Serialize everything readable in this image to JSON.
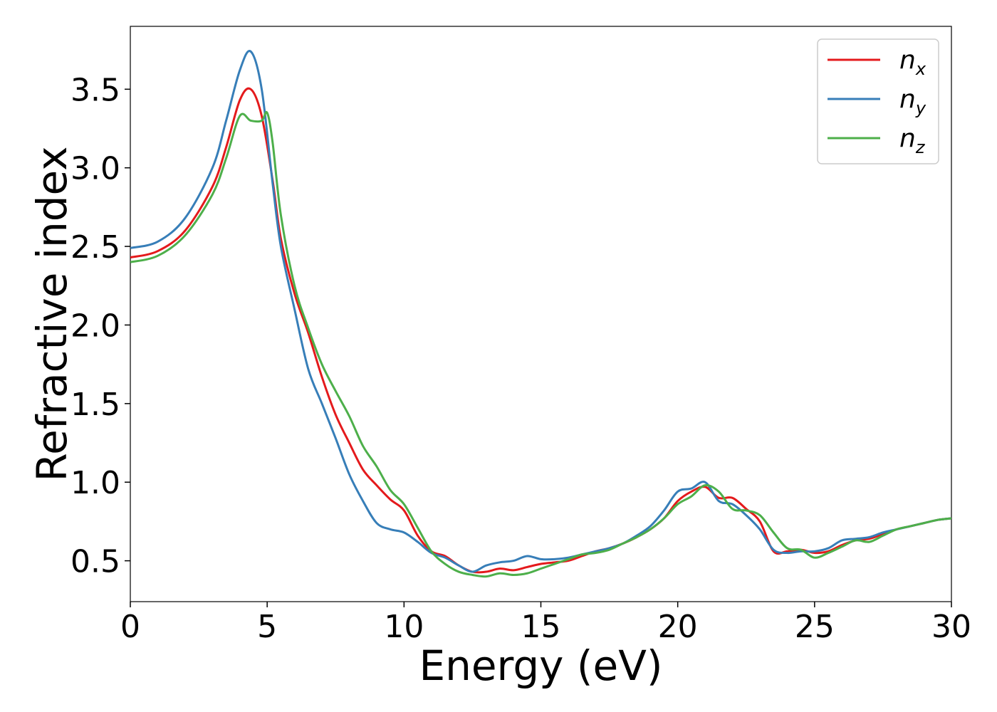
{
  "chart_data": {
    "type": "line",
    "title": "",
    "xlabel": "Energy (eV)",
    "ylabel": "Refractive index",
    "xlim": [
      0,
      30
    ],
    "ylim": [
      0.24,
      3.9
    ],
    "xticks": [
      0,
      5,
      10,
      15,
      20,
      25,
      30
    ],
    "yticks": [
      0.5,
      1.0,
      1.5,
      2.0,
      2.5,
      3.0,
      3.5
    ],
    "xtick_labels": [
      "0",
      "5",
      "10",
      "15",
      "20",
      "25",
      "30"
    ],
    "ytick_labels": [
      "0.5",
      "1.0",
      "1.5",
      "2.0",
      "2.5",
      "3.0",
      "3.5"
    ],
    "grid": false,
    "legend_position": "top-right",
    "series": [
      {
        "name": "n_x",
        "label_base": "n",
        "label_sub": "x",
        "color": "#e41a1c",
        "x": [
          0,
          1,
          2,
          3,
          3.5,
          4,
          4.4,
          4.8,
          5.2,
          5.5,
          6,
          6.5,
          7,
          7.5,
          8,
          8.5,
          9,
          9.5,
          10,
          10.5,
          11,
          11.5,
          12,
          12.5,
          13,
          13.5,
          14,
          14.5,
          15,
          15.5,
          16,
          16.5,
          17,
          17.5,
          18,
          18.5,
          19,
          19.5,
          20,
          20.5,
          21,
          21.5,
          22,
          22.5,
          23,
          23.5,
          24,
          24.5,
          25,
          25.5,
          26,
          26.5,
          27,
          27.5,
          28,
          28.5,
          29,
          29.5,
          30
        ],
        "y": [
          2.43,
          2.47,
          2.6,
          2.88,
          3.13,
          3.43,
          3.5,
          3.33,
          2.92,
          2.55,
          2.2,
          1.95,
          1.67,
          1.43,
          1.25,
          1.08,
          0.98,
          0.89,
          0.82,
          0.66,
          0.56,
          0.53,
          0.47,
          0.43,
          0.43,
          0.45,
          0.44,
          0.46,
          0.48,
          0.49,
          0.5,
          0.53,
          0.56,
          0.58,
          0.61,
          0.65,
          0.7,
          0.77,
          0.88,
          0.94,
          0.97,
          0.9,
          0.9,
          0.83,
          0.75,
          0.56,
          0.56,
          0.57,
          0.55,
          0.56,
          0.6,
          0.63,
          0.64,
          0.67,
          0.7,
          0.72,
          0.74,
          0.76,
          0.77
        ]
      },
      {
        "name": "n_y",
        "label_base": "n",
        "label_sub": "y",
        "color": "#377eb8",
        "x": [
          0,
          1,
          2,
          3,
          3.5,
          4,
          4.4,
          4.8,
          5.2,
          5.5,
          6,
          6.5,
          7,
          7.5,
          8,
          8.5,
          9,
          9.5,
          10,
          10.5,
          11,
          11.5,
          12,
          12.5,
          13,
          13.5,
          14,
          14.5,
          15,
          15.5,
          16,
          16.5,
          17,
          17.5,
          18,
          18.5,
          19,
          19.5,
          20,
          20.5,
          21,
          21.5,
          22,
          22.5,
          23,
          23.5,
          24,
          24.5,
          25,
          25.5,
          26,
          26.5,
          27,
          27.5,
          28,
          28.5,
          29,
          29.5,
          30
        ],
        "y": [
          2.49,
          2.53,
          2.68,
          3.0,
          3.3,
          3.62,
          3.74,
          3.5,
          2.9,
          2.5,
          2.1,
          1.72,
          1.5,
          1.28,
          1.05,
          0.88,
          0.74,
          0.7,
          0.68,
          0.62,
          0.55,
          0.52,
          0.47,
          0.43,
          0.47,
          0.49,
          0.5,
          0.53,
          0.51,
          0.51,
          0.52,
          0.54,
          0.56,
          0.58,
          0.61,
          0.66,
          0.72,
          0.82,
          0.94,
          0.96,
          1.0,
          0.88,
          0.86,
          0.79,
          0.7,
          0.57,
          0.55,
          0.56,
          0.56,
          0.58,
          0.63,
          0.64,
          0.65,
          0.68,
          0.7,
          0.72,
          0.74,
          0.76,
          0.77
        ]
      },
      {
        "name": "n_z",
        "label_base": "n",
        "label_sub": "z",
        "color": "#4daf4a",
        "x": [
          0,
          1,
          2,
          3,
          3.5,
          4,
          4.4,
          4.8,
          5.0,
          5.2,
          5.5,
          6,
          6.5,
          7,
          7.5,
          8,
          8.5,
          9,
          9.5,
          10,
          10.5,
          11,
          11.5,
          12,
          12.5,
          13,
          13.5,
          14,
          14.5,
          15,
          15.5,
          16,
          16.5,
          17,
          17.5,
          18,
          18.5,
          19,
          19.5,
          20,
          20.5,
          21,
          21.5,
          22,
          22.5,
          23,
          23.5,
          24,
          24.5,
          25,
          25.5,
          26,
          26.5,
          27,
          27.5,
          28,
          28.5,
          29,
          29.5,
          30
        ],
        "y": [
          2.4,
          2.44,
          2.57,
          2.83,
          3.06,
          3.33,
          3.3,
          3.3,
          3.35,
          3.16,
          2.7,
          2.25,
          1.98,
          1.75,
          1.58,
          1.42,
          1.23,
          1.1,
          0.95,
          0.86,
          0.71,
          0.56,
          0.48,
          0.43,
          0.41,
          0.4,
          0.42,
          0.41,
          0.42,
          0.45,
          0.48,
          0.51,
          0.54,
          0.55,
          0.57,
          0.61,
          0.65,
          0.7,
          0.77,
          0.86,
          0.91,
          0.98,
          0.94,
          0.83,
          0.82,
          0.79,
          0.68,
          0.58,
          0.57,
          0.52,
          0.55,
          0.59,
          0.63,
          0.62,
          0.66,
          0.7,
          0.72,
          0.74,
          0.76,
          0.77
        ]
      }
    ]
  }
}
